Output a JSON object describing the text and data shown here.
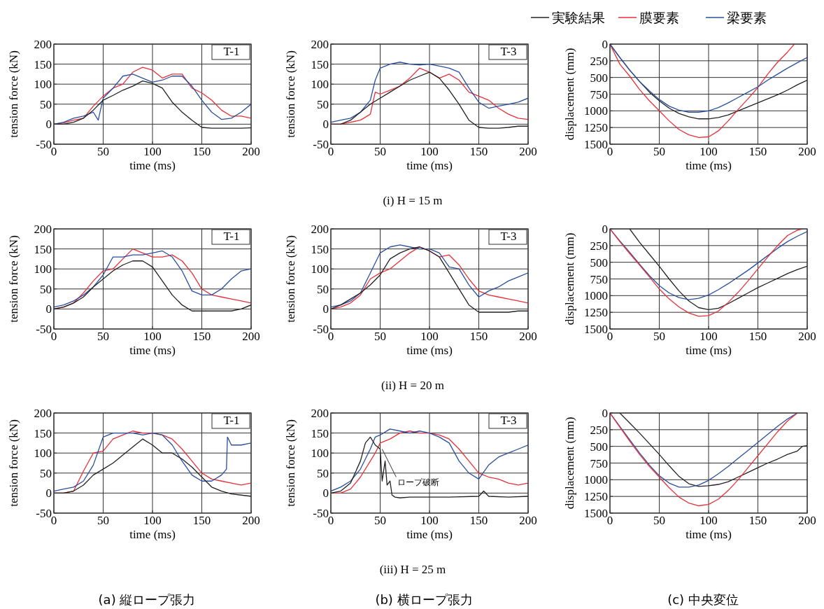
{
  "chart_data": [
    {
      "type": "line",
      "title": "T-1",
      "xlabel": "time (ms)",
      "ylabel": "tension force (kN)",
      "xlim": [
        0,
        200
      ],
      "xticks": [
        0,
        50,
        100,
        150,
        200
      ],
      "ylim": [
        -50,
        200
      ],
      "yticks": [
        -50,
        0,
        50,
        100,
        150,
        200
      ],
      "grid": true,
      "series": [
        {
          "color": "#e8303a",
          "x": [
            0,
            10,
            20,
            30,
            40,
            50,
            60,
            70,
            80,
            90,
            100,
            110,
            120,
            130,
            140,
            150,
            160,
            170,
            180,
            190,
            200
          ],
          "values": [
            0,
            3,
            10,
            15,
            45,
            70,
            90,
            100,
            130,
            142,
            135,
            115,
            125,
            125,
            90,
            78,
            60,
            35,
            20,
            20,
            15
          ]
        },
        {
          "color": "#2a4fa0",
          "x": [
            0,
            10,
            20,
            30,
            40,
            45,
            50,
            60,
            70,
            80,
            90,
            100,
            110,
            120,
            130,
            140,
            150,
            160,
            170,
            180,
            190,
            200
          ],
          "values": [
            0,
            5,
            15,
            20,
            30,
            10,
            65,
            90,
            120,
            125,
            115,
            105,
            110,
            120,
            120,
            95,
            60,
            30,
            12,
            15,
            30,
            50
          ]
        },
        {
          "color": "#222222",
          "x": [
            0,
            10,
            20,
            30,
            40,
            50,
            60,
            70,
            80,
            90,
            100,
            110,
            120,
            130,
            140,
            150,
            160,
            170,
            180,
            190,
            200
          ],
          "values": [
            0,
            0,
            5,
            15,
            35,
            60,
            72,
            85,
            95,
            108,
            102,
            90,
            55,
            30,
            10,
            -8,
            -10,
            -10,
            -10,
            -10,
            -9
          ]
        }
      ]
    },
    {
      "type": "line",
      "title": "T-3",
      "subtitle": "(i) H = 15 m",
      "xlabel": "time (ms)",
      "ylabel": "tension force (kN)",
      "xlim": [
        0,
        200
      ],
      "xticks": [
        0,
        50,
        100,
        150,
        200
      ],
      "ylim": [
        -50,
        200
      ],
      "yticks": [
        -50,
        0,
        50,
        100,
        150,
        200
      ],
      "grid": true,
      "series": [
        {
          "color": "#e8303a",
          "x": [
            0,
            10,
            20,
            30,
            40,
            45,
            50,
            60,
            70,
            80,
            90,
            100,
            110,
            120,
            130,
            140,
            150,
            160,
            170,
            180,
            190,
            200
          ],
          "values": [
            0,
            0,
            5,
            10,
            25,
            80,
            75,
            85,
            95,
            115,
            140,
            130,
            115,
            125,
            110,
            80,
            70,
            60,
            40,
            25,
            15,
            12
          ]
        },
        {
          "color": "#2a4fa0",
          "x": [
            0,
            10,
            20,
            30,
            40,
            45,
            50,
            60,
            70,
            80,
            90,
            100,
            110,
            120,
            130,
            140,
            150,
            160,
            170,
            180,
            190,
            200
          ],
          "values": [
            5,
            10,
            15,
            30,
            60,
            110,
            140,
            150,
            155,
            150,
            148,
            150,
            145,
            140,
            130,
            90,
            55,
            40,
            45,
            50,
            55,
            65
          ]
        },
        {
          "color": "#222222",
          "x": [
            0,
            10,
            20,
            30,
            40,
            50,
            60,
            70,
            80,
            90,
            100,
            110,
            120,
            130,
            140,
            150,
            160,
            170,
            180,
            190,
            200
          ],
          "values": [
            0,
            0,
            10,
            30,
            50,
            65,
            80,
            95,
            110,
            120,
            130,
            115,
            85,
            50,
            10,
            -8,
            -10,
            -10,
            -8,
            -5,
            -5
          ]
        }
      ]
    },
    {
      "type": "line",
      "xlabel": "time (ms)",
      "ylabel": "displacement (mm)",
      "xlim": [
        0,
        200
      ],
      "xticks": [
        0,
        50,
        100,
        150,
        200
      ],
      "ylim": [
        1500,
        0
      ],
      "yticks": [
        0,
        250,
        500,
        750,
        1000,
        1250,
        1500
      ],
      "grid": true,
      "legend": "top",
      "series": [
        {
          "name": "実験結果",
          "color": "#222222",
          "x": [
            0,
            10,
            20,
            30,
            40,
            50,
            60,
            70,
            80,
            90,
            100,
            110,
            120,
            130,
            140,
            150,
            160,
            170,
            180,
            190,
            200
          ],
          "values": [
            0,
            200,
            390,
            560,
            720,
            850,
            960,
            1040,
            1090,
            1120,
            1120,
            1100,
            1060,
            1000,
            940,
            880,
            820,
            760,
            690,
            610,
            540
          ]
        },
        {
          "name": "膜要素",
          "color": "#e8303a",
          "x": [
            0,
            10,
            20,
            30,
            40,
            50,
            60,
            70,
            80,
            90,
            100,
            110,
            120,
            130,
            140,
            150,
            160,
            170,
            180,
            187
          ],
          "values": [
            0,
            300,
            480,
            680,
            850,
            1000,
            1150,
            1280,
            1360,
            1400,
            1390,
            1300,
            1150,
            980,
            820,
            650,
            450,
            270,
            120,
            0
          ]
        },
        {
          "name": "梁要素",
          "color": "#2a4fa0",
          "x": [
            0,
            10,
            20,
            30,
            40,
            50,
            60,
            70,
            80,
            90,
            100,
            110,
            120,
            130,
            140,
            150,
            160,
            170,
            180,
            190,
            200
          ],
          "values": [
            0,
            200,
            390,
            560,
            700,
            830,
            930,
            990,
            1020,
            1020,
            1000,
            950,
            880,
            800,
            720,
            640,
            540,
            450,
            360,
            280,
            200
          ]
        }
      ]
    },
    {
      "type": "line",
      "title": "T-1",
      "xlabel": "time (ms)",
      "ylabel": "tension force (kN)",
      "xlim": [
        0,
        200
      ],
      "xticks": [
        0,
        50,
        100,
        150,
        200
      ],
      "ylim": [
        -50,
        200
      ],
      "yticks": [
        -50,
        0,
        50,
        100,
        150,
        200
      ],
      "grid": true,
      "series": [
        {
          "color": "#e8303a",
          "x": [
            0,
            10,
            20,
            30,
            40,
            50,
            60,
            70,
            80,
            90,
            100,
            110,
            120,
            130,
            140,
            150,
            160,
            170,
            180,
            190,
            200
          ],
          "values": [
            0,
            5,
            15,
            40,
            70,
            95,
            100,
            125,
            150,
            140,
            130,
            130,
            135,
            120,
            90,
            50,
            35,
            30,
            25,
            20,
            15
          ]
        },
        {
          "color": "#2a4fa0",
          "x": [
            0,
            10,
            20,
            30,
            40,
            50,
            60,
            70,
            80,
            90,
            100,
            110,
            120,
            130,
            140,
            150,
            160,
            170,
            180,
            190,
            200
          ],
          "values": [
            5,
            10,
            20,
            35,
            55,
            85,
            130,
            130,
            135,
            135,
            140,
            145,
            130,
            95,
            45,
            35,
            35,
            50,
            75,
            95,
            100
          ]
        },
        {
          "color": "#222222",
          "x": [
            0,
            10,
            20,
            30,
            40,
            50,
            60,
            70,
            80,
            90,
            100,
            110,
            120,
            130,
            140,
            150,
            160,
            170,
            180,
            190,
            200
          ],
          "values": [
            0,
            5,
            15,
            30,
            55,
            75,
            95,
            110,
            120,
            120,
            105,
            70,
            35,
            10,
            -5,
            -5,
            -5,
            -5,
            -5,
            0,
            10
          ]
        }
      ]
    },
    {
      "type": "line",
      "title": "T-3",
      "subtitle": "(ii) H = 20 m",
      "xlabel": "time (ms)",
      "ylabel": "tension force (kN)",
      "xlim": [
        0,
        200
      ],
      "xticks": [
        0,
        50,
        100,
        150,
        200
      ],
      "ylim": [
        -50,
        200
      ],
      "yticks": [
        -50,
        0,
        50,
        100,
        150,
        200
      ],
      "grid": true,
      "series": [
        {
          "color": "#e8303a",
          "x": [
            0,
            10,
            20,
            30,
            40,
            50,
            60,
            70,
            80,
            90,
            100,
            110,
            120,
            130,
            140,
            150,
            160,
            170,
            180,
            190,
            200
          ],
          "values": [
            0,
            5,
            15,
            35,
            75,
            90,
            100,
            120,
            140,
            155,
            145,
            130,
            135,
            110,
            75,
            45,
            35,
            30,
            25,
            20,
            15
          ]
        },
        {
          "color": "#2a4fa0",
          "x": [
            0,
            10,
            20,
            30,
            40,
            50,
            60,
            70,
            80,
            90,
            100,
            110,
            120,
            130,
            140,
            150,
            160,
            170,
            180,
            190,
            200
          ],
          "values": [
            5,
            10,
            20,
            40,
            90,
            140,
            155,
            160,
            155,
            150,
            150,
            140,
            105,
            100,
            60,
            30,
            45,
            55,
            70,
            80,
            90
          ]
        },
        {
          "color": "#222222",
          "x": [
            0,
            10,
            20,
            30,
            40,
            50,
            60,
            70,
            80,
            90,
            100,
            110,
            120,
            130,
            140,
            150,
            160,
            170,
            180,
            190,
            200
          ],
          "values": [
            0,
            10,
            25,
            40,
            60,
            85,
            125,
            140,
            150,
            155,
            145,
            130,
            90,
            50,
            10,
            -8,
            -8,
            -8,
            -8,
            -5,
            -5
          ]
        }
      ]
    },
    {
      "type": "line",
      "xlabel": "time (ms)",
      "ylabel": "displacement (mm)",
      "xlim": [
        0,
        200
      ],
      "xticks": [
        0,
        50,
        100,
        150,
        200
      ],
      "ylim": [
        1500,
        0
      ],
      "yticks": [
        0,
        250,
        500,
        750,
        1000,
        1250,
        1500
      ],
      "grid": true,
      "series": [
        {
          "color": "#222222",
          "x": [
            20,
            30,
            40,
            50,
            60,
            70,
            80,
            90,
            100,
            110,
            120,
            130,
            140,
            150,
            160,
            170,
            180,
            190,
            200
          ],
          "values": [
            0,
            200,
            380,
            560,
            750,
            930,
            1080,
            1180,
            1210,
            1190,
            1120,
            1040,
            960,
            880,
            810,
            740,
            670,
            610,
            560
          ]
        },
        {
          "color": "#2a4fa0",
          "x": [
            0,
            10,
            20,
            30,
            40,
            50,
            60,
            70,
            80,
            90,
            100,
            110,
            120,
            130,
            140,
            150,
            160,
            170,
            180,
            190,
            200
          ],
          "values": [
            0,
            180,
            350,
            530,
            700,
            850,
            960,
            1030,
            1060,
            1040,
            990,
            910,
            820,
            720,
            620,
            510,
            400,
            290,
            190,
            110,
            40
          ]
        },
        {
          "color": "#e8303a",
          "x": [
            0,
            10,
            20,
            30,
            40,
            50,
            60,
            70,
            80,
            90,
            100,
            110,
            120,
            130,
            140,
            150,
            160,
            170,
            180,
            190,
            195
          ],
          "values": [
            0,
            190,
            370,
            540,
            720,
            900,
            1050,
            1170,
            1260,
            1310,
            1300,
            1230,
            1100,
            950,
            780,
            600,
            420,
            250,
            100,
            20,
            0
          ]
        }
      ]
    },
    {
      "type": "line",
      "title": "T-1",
      "xlabel": "time (ms)",
      "ylabel": "tension force (kN)",
      "xlim": [
        0,
        200
      ],
      "xticks": [
        0,
        50,
        100,
        150,
        200
      ],
      "ylim": [
        -50,
        200
      ],
      "yticks": [
        -50,
        0,
        50,
        100,
        150,
        200
      ],
      "grid": true,
      "annotations": [
        "(a) 縦ロープ張力"
      ],
      "series": [
        {
          "color": "#e8303a",
          "x": [
            0,
            10,
            20,
            30,
            40,
            50,
            60,
            70,
            80,
            90,
            100,
            110,
            120,
            130,
            140,
            150,
            160,
            170,
            180,
            190,
            200
          ],
          "values": [
            0,
            0,
            5,
            55,
            100,
            105,
            135,
            145,
            155,
            150,
            150,
            145,
            135,
            110,
            80,
            50,
            35,
            30,
            25,
            20,
            25
          ]
        },
        {
          "color": "#2a4fa0",
          "x": [
            0,
            10,
            20,
            30,
            40,
            50,
            60,
            70,
            80,
            90,
            100,
            110,
            120,
            130,
            140,
            150,
            160,
            170,
            175,
            176,
            180,
            190,
            200
          ],
          "values": [
            5,
            10,
            15,
            30,
            70,
            140,
            150,
            150,
            150,
            145,
            150,
            145,
            120,
            80,
            45,
            30,
            30,
            45,
            60,
            140,
            120,
            120,
            125
          ]
        },
        {
          "color": "#222222",
          "x": [
            0,
            10,
            20,
            30,
            40,
            50,
            60,
            70,
            80,
            90,
            100,
            110,
            120,
            130,
            140,
            150,
            160,
            170,
            180,
            190,
            200
          ],
          "values": [
            0,
            0,
            5,
            20,
            45,
            60,
            75,
            95,
            115,
            135,
            120,
            100,
            100,
            85,
            65,
            40,
            15,
            5,
            -2,
            -5,
            -8
          ]
        }
      ]
    },
    {
      "type": "line",
      "title": "T-3",
      "subtitle": "(iii) H = 25 m",
      "xlabel": "time (ms)",
      "ylabel": "tension force (kN)",
      "xlim": [
        0,
        200
      ],
      "xticks": [
        0,
        50,
        100,
        150,
        200
      ],
      "ylim": [
        -50,
        200
      ],
      "yticks": [
        -50,
        0,
        50,
        100,
        150,
        200
      ],
      "grid": true,
      "annotations": [
        "(b) 横ロープ張力",
        {
          "text": "ロープ破断",
          "x": 52,
          "y": 110
        }
      ],
      "series": [
        {
          "color": "#e8303a",
          "x": [
            0,
            10,
            20,
            30,
            40,
            45,
            50,
            60,
            70,
            80,
            90,
            100,
            110,
            120,
            130,
            140,
            150,
            160,
            170,
            180,
            190,
            200
          ],
          "values": [
            0,
            0,
            10,
            40,
            80,
            100,
            125,
            135,
            150,
            155,
            150,
            150,
            145,
            135,
            110,
            80,
            50,
            40,
            35,
            25,
            20,
            25
          ]
        },
        {
          "color": "#2a4fa0",
          "x": [
            0,
            10,
            20,
            30,
            40,
            45,
            50,
            60,
            70,
            80,
            90,
            100,
            110,
            120,
            130,
            140,
            150,
            160,
            170,
            180,
            190,
            200
          ],
          "values": [
            5,
            15,
            30,
            60,
            110,
            140,
            145,
            160,
            155,
            150,
            155,
            150,
            140,
            125,
            80,
            50,
            35,
            70,
            90,
            100,
            110,
            120
          ]
        },
        {
          "color": "#222222",
          "x": [
            0,
            10,
            20,
            30,
            35,
            40,
            45,
            50,
            52,
            55,
            57,
            60,
            62,
            65,
            70,
            80,
            100,
            120,
            150,
            155,
            160,
            180,
            200
          ],
          "values": [
            0,
            5,
            25,
            80,
            125,
            140,
            120,
            110,
            30,
            80,
            20,
            30,
            -5,
            -10,
            -12,
            -10,
            -10,
            -10,
            -8,
            5,
            -8,
            -10,
            -8
          ]
        }
      ]
    },
    {
      "type": "line",
      "xlabel": "time (ms)",
      "ylabel": "displacement (mm)",
      "xlim": [
        0,
        200
      ],
      "xticks": [
        0,
        50,
        100,
        150,
        200
      ],
      "ylim": [
        1500,
        0
      ],
      "yticks": [
        0,
        250,
        500,
        750,
        1000,
        1250,
        1500
      ],
      "grid": true,
      "annotations": [
        "(c) 中央変位"
      ],
      "series": [
        {
          "color": "#222222",
          "x": [
            10,
            20,
            30,
            40,
            50,
            60,
            70,
            80,
            90,
            100,
            110,
            120,
            130,
            140,
            150,
            160,
            170,
            180,
            190,
            195,
            200
          ],
          "values": [
            0,
            150,
            300,
            460,
            620,
            790,
            950,
            1060,
            1100,
            1090,
            1070,
            1030,
            960,
            890,
            820,
            750,
            690,
            620,
            570,
            500,
            490
          ]
        },
        {
          "color": "#2a4fa0",
          "x": [
            0,
            10,
            20,
            30,
            40,
            50,
            60,
            70,
            80,
            90,
            100,
            110,
            120,
            130,
            140,
            150,
            160,
            170,
            180,
            190
          ],
          "values": [
            0,
            200,
            400,
            600,
            780,
            940,
            1050,
            1110,
            1110,
            1080,
            1010,
            910,
            800,
            680,
            560,
            440,
            320,
            200,
            90,
            0
          ]
        },
        {
          "color": "#e8303a",
          "x": [
            0,
            10,
            20,
            30,
            40,
            50,
            60,
            70,
            80,
            90,
            100,
            110,
            120,
            130,
            140,
            150,
            160,
            170,
            180,
            190
          ],
          "values": [
            0,
            210,
            420,
            620,
            800,
            960,
            1120,
            1260,
            1350,
            1390,
            1370,
            1290,
            1160,
            1000,
            820,
            640,
            460,
            280,
            120,
            0
          ]
        }
      ]
    }
  ]
}
